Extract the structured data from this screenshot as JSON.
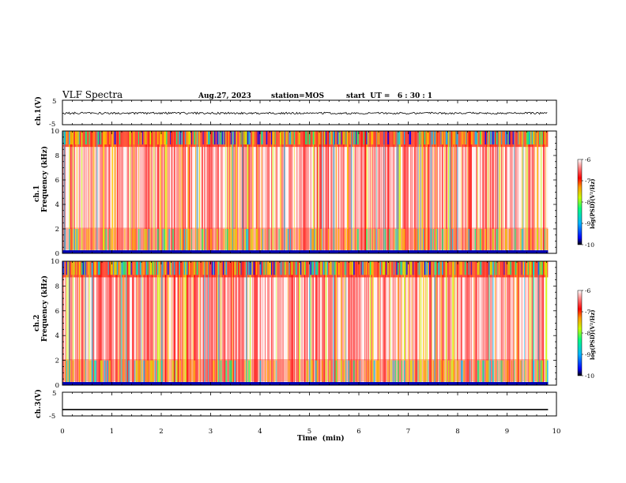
{
  "header": {
    "title": "VLF Spectra",
    "date": "Aug.27, 2023",
    "station": "station=MOS",
    "start": "start  UT =   6 : 30 : 1"
  },
  "chart_data": [
    {
      "type": "line",
      "panel": "ch1-waveform",
      "ylabel": "ch.1(V)",
      "ylim": [
        -5,
        5
      ],
      "yticks": [
        "5",
        "-5"
      ],
      "description_level_V": -0.3
    },
    {
      "type": "heatmap",
      "panel": "ch1-spectrogram",
      "ylabel": "ch.1\nFrequency (kHz)",
      "ylim": [
        0,
        10
      ],
      "yticks": [
        "0",
        "2",
        "4",
        "6",
        "8",
        "10"
      ],
      "colorbar": {
        "label": "log(PSD)(V²/Hz)",
        "range": [
          -10,
          -6
        ],
        "ticks": [
          "-6",
          "-7",
          "-8",
          "-9",
          "-10"
        ]
      }
    },
    {
      "type": "heatmap",
      "panel": "ch2-spectrogram",
      "ylabel": "ch.2\nFrequency (kHz)",
      "ylim": [
        0,
        10
      ],
      "yticks": [
        "0",
        "2",
        "4",
        "6",
        "8",
        "10"
      ],
      "colorbar": {
        "label": "log(PSD)(V²/Hz)",
        "range": [
          -10,
          -6
        ],
        "ticks": [
          "-6",
          "-7",
          "-8",
          "-9",
          "-10"
        ]
      }
    },
    {
      "type": "line",
      "panel": "ch3-waveform",
      "ylabel": "ch.3(V)",
      "ylim": [
        -5,
        5
      ],
      "yticks": [
        "5",
        "-5"
      ],
      "x": [
        0,
        9.83
      ],
      "y": [
        -2.3,
        -2.3
      ]
    }
  ],
  "xaxis": {
    "label": "Time  (min)",
    "xlim": [
      0,
      10
    ],
    "ticks": [
      "0",
      "1",
      "2",
      "3",
      "4",
      "5",
      "6",
      "7",
      "8",
      "9",
      "10"
    ],
    "data_end": 9.83
  },
  "labels": {
    "ch1v": "ch.1(V)",
    "ch3v": "ch.3(V)",
    "ch1": "ch.1",
    "ch2": "ch.2",
    "freq": "Frequency (kHz)",
    "cb": "log(PSD)(V²/Hz)"
  },
  "colors": {
    "colormap": [
      "#000000",
      "#0000ff",
      "#00b4ff",
      "#00ff80",
      "#c8ff00",
      "#ff9600",
      "#ff0000",
      "#ff8080",
      "#ffffff"
    ]
  }
}
